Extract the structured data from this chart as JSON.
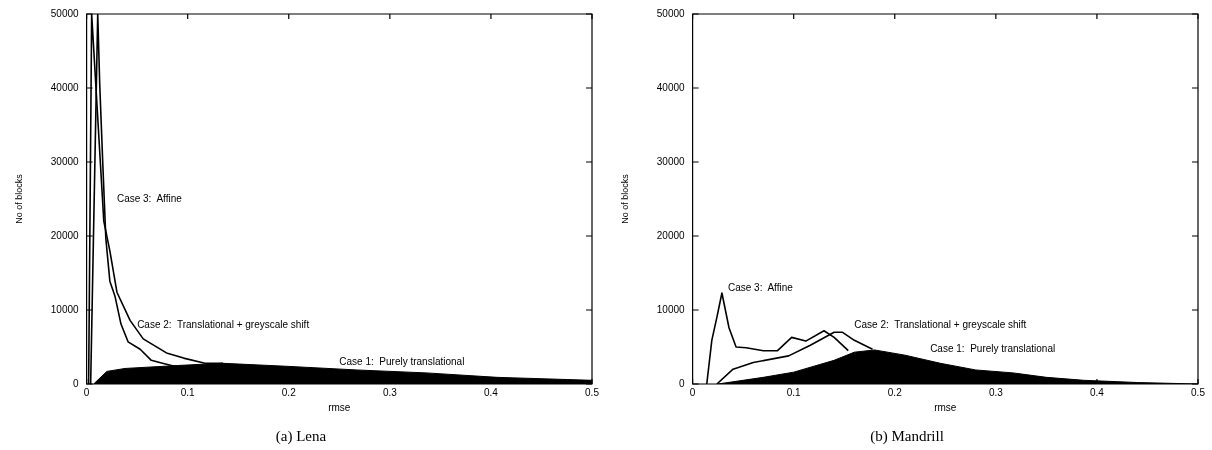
{
  "chart_data": [
    {
      "type": "line",
      "title": "(a) Lena",
      "xlabel": "rmse",
      "ylabel": "No of blocks",
      "xlim": [
        0,
        0.5
      ],
      "ylim": [
        0,
        50000
      ],
      "xticks": [
        0,
        0.1,
        0.2,
        0.3,
        0.4,
        0.5
      ],
      "yticks": [
        0,
        10000,
        20000,
        30000,
        40000,
        50000
      ],
      "grid": false,
      "series": [
        {
          "name": "Case 1:  Purely translational",
          "type": "area",
          "color": "#000000",
          "x": [
            0.007,
            0.02,
            0.038,
            0.09,
            0.134,
            0.197,
            0.267,
            0.336,
            0.406,
            0.476,
            0.5
          ],
          "values": [
            0,
            1700,
            2100,
            2500,
            2800,
            2400,
            1900,
            1500,
            900,
            600,
            500
          ]
        },
        {
          "name": "Case 2:  Translational + greyscale shift",
          "type": "line",
          "color": "#000000",
          "x": [
            0.002,
            0.005,
            0.017,
            0.023,
            0.03,
            0.043,
            0.056,
            0.079,
            0.096,
            0.117,
            0.135
          ],
          "values": [
            0,
            50000,
            22000,
            18000,
            12400,
            8600,
            6100,
            4200,
            3500,
            2800,
            2800
          ]
        },
        {
          "name": "Case 3:  Affine",
          "type": "line",
          "color": "#000000",
          "x": [
            0.004,
            0.011,
            0.013,
            0.016,
            0.019,
            0.023,
            0.028,
            0.034,
            0.041,
            0.053,
            0.064,
            0.075,
            0.09
          ],
          "values": [
            0,
            50000,
            40400,
            29800,
            19700,
            13900,
            11900,
            8100,
            5700,
            4700,
            3200,
            2800,
            2300
          ]
        }
      ]
    },
    {
      "type": "line",
      "title": "(b) Mandrill",
      "xlabel": "rmse",
      "ylabel": "No of blocks",
      "xlim": [
        0,
        0.5
      ],
      "ylim": [
        0,
        50000
      ],
      "xticks": [
        0,
        0.1,
        0.2,
        0.3,
        0.4,
        0.5
      ],
      "yticks": [
        0,
        10000,
        20000,
        30000,
        40000,
        50000
      ],
      "grid": false,
      "series": [
        {
          "name": "Case 1:  Purely translational",
          "type": "area",
          "color": "#000000",
          "x": [
            0.025,
            0.05,
            0.07,
            0.1,
            0.14,
            0.16,
            0.18,
            0.21,
            0.245,
            0.28,
            0.317,
            0.35,
            0.387,
            0.44,
            0.5
          ],
          "values": [
            0,
            500,
            900,
            1600,
            3200,
            4300,
            4600,
            3900,
            2800,
            1900,
            1500,
            900,
            500,
            200,
            0
          ]
        },
        {
          "name": "Case 2:  Translational + greyscale shift",
          "type": "line",
          "color": "#000000",
          "x": [
            0.024,
            0.04,
            0.06,
            0.095,
            0.116,
            0.14,
            0.148,
            0.16,
            0.178
          ],
          "values": [
            0,
            2000,
            2900,
            3800,
            5200,
            7000,
            7000,
            5900,
            4700
          ]
        },
        {
          "name": "Case 3:  Affine",
          "type": "line",
          "color": "#000000",
          "x": [
            0.014,
            0.019,
            0.024,
            0.029,
            0.036,
            0.043,
            0.053,
            0.07,
            0.084,
            0.098,
            0.112,
            0.13,
            0.14,
            0.154
          ],
          "values": [
            0,
            5900,
            9000,
            12300,
            7600,
            5000,
            4900,
            4500,
            4500,
            6300,
            5800,
            7200,
            6300,
            4500
          ]
        }
      ]
    }
  ]
}
